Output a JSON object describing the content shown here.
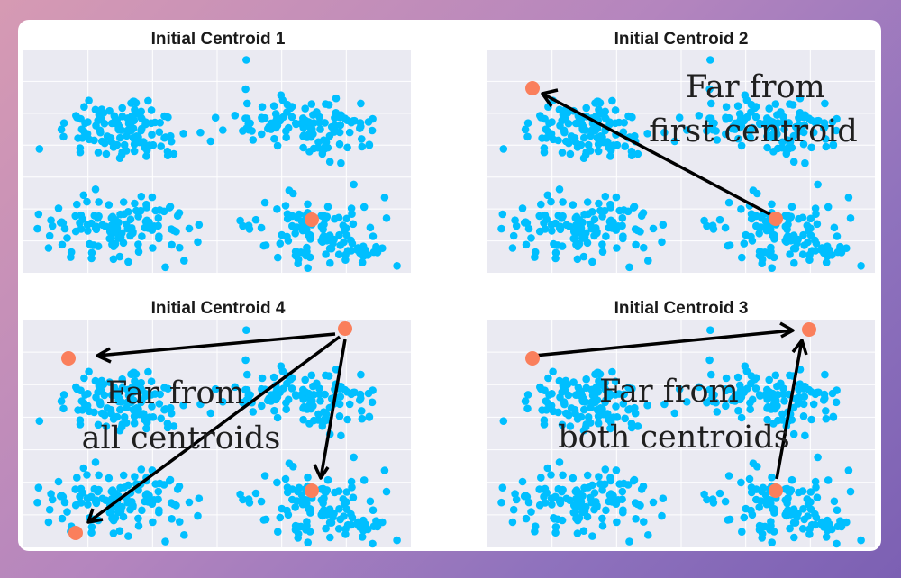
{
  "colors": {
    "points": "#00bfff",
    "centroid": "#fa7f5c",
    "panel_bg": "#eaeaf2",
    "arrow": "#000000"
  },
  "panels": [
    {
      "title": "Initial Centroid 1",
      "annotation_lines": []
    },
    {
      "title": "Initial Centroid 2",
      "annotation_lines": [
        "Far from",
        "first centroid"
      ]
    },
    {
      "title": "Initial Centroid 4",
      "annotation_lines": [
        "Far from",
        "all centroids"
      ]
    },
    {
      "title": "Initial Centroid 3",
      "annotation_lines": [
        "Far from",
        "both centroids"
      ]
    }
  ]
}
